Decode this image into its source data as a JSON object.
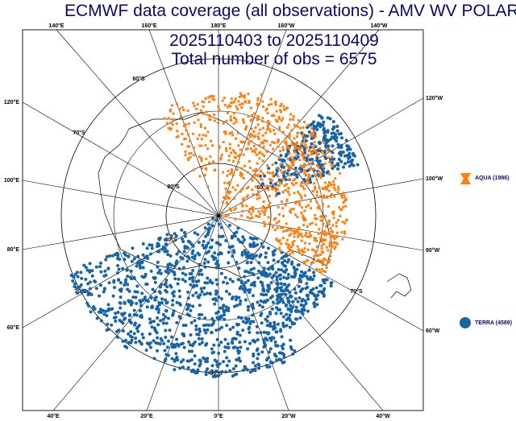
{
  "title": {
    "line1": "ECMWF data coverage (all observations) - AMV WV POLAR",
    "line2": "2025110403 to 2025110409",
    "line3": "Total number of obs = 6575"
  },
  "colors": {
    "aqua": "#ff7f0e",
    "terra": "#1764a8",
    "text": "#0a0a6e"
  },
  "legend": [
    {
      "label": "AQUA (1986)",
      "icon": "hourglass-marker-icon",
      "color": "#ff7f0e"
    },
    {
      "label": "TERRA (4589)",
      "icon": "circle-marker-icon",
      "color": "#1764a8"
    }
  ],
  "axis_labels": {
    "top": [
      "140°E",
      "160°E",
      "180°E",
      "160°W",
      "140°W"
    ],
    "bottom": [
      "40°E",
      "20°E",
      "0°E",
      "20°W",
      "40°W"
    ],
    "left": [
      "120°E",
      "100°E",
      "80°E",
      "60°E"
    ],
    "right": [
      "120°W",
      "100°W",
      "80°W",
      "60°W"
    ]
  },
  "lat_labels": [
    "80°S",
    "70°S",
    "60°S"
  ]
}
